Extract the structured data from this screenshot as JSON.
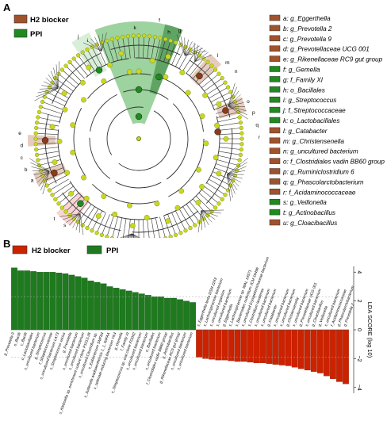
{
  "panel_a": {
    "label": "A",
    "group_legend": [
      {
        "name": "H2 blocker",
        "color": "#a0522d"
      },
      {
        "name": "PPI",
        "color": "#1f8a1f"
      }
    ],
    "taxa_legend": [
      {
        "text": "a: g_Eggerthella",
        "group": "h2"
      },
      {
        "text": "b: g_Prevotella 2",
        "group": "h2"
      },
      {
        "text": "c: g_Prevotella 9",
        "group": "h2"
      },
      {
        "text": "d: g_Prevotellaceae UCG 001",
        "group": "h2"
      },
      {
        "text": "e: g_Rikenellaceae RC9 gut group",
        "group": "h2"
      },
      {
        "text": "f: g_Gemella",
        "group": "ppi"
      },
      {
        "text": "g: f_Family XI",
        "group": "ppi"
      },
      {
        "text": "h: o_Bacillales",
        "group": "ppi"
      },
      {
        "text": "i: g_Streptococcus",
        "group": "ppi"
      },
      {
        "text": "j: f_Streptococcaceae",
        "group": "ppi"
      },
      {
        "text": "k: o_Lactobacillales",
        "group": "ppi"
      },
      {
        "text": "l: g_Catabacter",
        "group": "h2"
      },
      {
        "text": "m: g_Christensenella",
        "group": "h2"
      },
      {
        "text": "n: g_uncultured bacterium",
        "group": "h2"
      },
      {
        "text": "o: f_Clostridiales vadin BB60 group",
        "group": "h2"
      },
      {
        "text": "p: g_Ruminiclostridium 6",
        "group": "h2"
      },
      {
        "text": "q: g_Phascolarctobacterium",
        "group": "h2"
      },
      {
        "text": "r: f_Acidaminococcaceae",
        "group": "h2"
      },
      {
        "text": "s: g_Veillonella",
        "group": "ppi"
      },
      {
        "text": "t: g_Actinobacillus",
        "group": "ppi"
      },
      {
        "text": "u: g_Cloacibacillus",
        "group": "h2"
      }
    ],
    "clade_labels": [
      "k",
      "h",
      "g",
      "i",
      "j",
      "f",
      "l",
      "m",
      "n",
      "o",
      "p",
      "q",
      "r",
      "s",
      "t",
      "u",
      "a",
      "b",
      "c",
      "d",
      "e"
    ]
  },
  "panel_b": {
    "label": "B",
    "legend": [
      {
        "name": "H2 blocker",
        "color": "#cc2200"
      },
      {
        "name": "PPI",
        "color": "#1f7a1f"
      }
    ],
    "axis_label": "LDA SCORE (log 10)",
    "axis_ticks": [
      "4",
      "2",
      "0",
      "−2",
      "−4"
    ],
    "ppi_labels": [
      "g_Prevotella 9",
      "o_Bacilli",
      "c_Bacilli",
      "o_Lactobacillales",
      "s_uncultured bacterium",
      "g_Streptococcus",
      "f_Streptococcaceae",
      "s_uncultured bacterium LA73",
      "s_Streptococcus varius",
      "g_Prevotella",
      "s_uncultured bacterium",
      "s_uncultured bacterium",
      "s_Klebsiella sp. enrichment culture clone P1013-35",
      "s_uncultured Clostridium sp.",
      "s_Eubacterium SMF64",
      "s_Sutterella wadsworthensis 1_1_50FAA",
      "s_selenate-reducing bacterium YK4",
      "g_Gemella",
      "f_Family XI",
      "s_Streptococcus sp. oral clone FO042",
      "s_uncultured bacterium",
      "s_uncultured bacterium",
      "o_Bacillales",
      "s_uncultured bacterium",
      "f_Clostridiales vadin BB60 group",
      "g_Actinobacillus",
      "g_Rikenellaceae RC9 gut group",
      "s_uncultured bacterium",
      "s_uncultured bacterium"
    ],
    "h2_labels": [
      "s_Eggerthella lenta DSM 2243",
      "s_Lachnospiraceae bacterium",
      "s_uncultured organism",
      "s_uncultured bacterium",
      "g_Eggerthella",
      "s_Lachnospiraceae sp. WAL 14571",
      "s_Bacteroides rodentium JCM 16496",
      "s_uncultured Erysipelotrichaceae bacterium",
      "s_Clostridium lavalense",
      "s_uncultured bacterium",
      "s_uncultured bacterium",
      "g_Catabacter",
      "s_uncultured bacterium",
      "s_uncultured bacterium",
      "g_Christensenella",
      "s_uncultured bacterium",
      "g_Prevotellaceae UCG 001",
      "s_uncultured bacterium",
      "g_Cloacibacillus",
      "g_Veillonella",
      "s_uncultured bacterium",
      "f_Acidaminococcaceae",
      "g_Phascolarctobacterium",
      "g_Prevotella 2"
    ]
  },
  "chart_data": {
    "type": "bar",
    "xlabel": "",
    "ylabel": "LDA SCORE (log 10)",
    "ylim": [
      -4.4,
      4.4
    ],
    "legend": "top-left",
    "series": [
      {
        "name": "PPI",
        "values": [
          4.3,
          4.1,
          4.1,
          4.05,
          4.0,
          4.0,
          4.0,
          3.95,
          3.9,
          3.8,
          3.7,
          3.6,
          3.4,
          3.3,
          3.2,
          3.0,
          2.9,
          2.8,
          2.7,
          2.6,
          2.5,
          2.4,
          2.3,
          2.3,
          2.2,
          2.2,
          2.1,
          2.0,
          1.9
        ]
      },
      {
        "name": "H2 blocker",
        "values": [
          -1.9,
          -2.0,
          -2.05,
          -2.1,
          -2.1,
          -2.15,
          -2.2,
          -2.2,
          -2.25,
          -2.3,
          -2.3,
          -2.35,
          -2.4,
          -2.45,
          -2.5,
          -2.6,
          -2.7,
          -2.8,
          -2.9,
          -3.0,
          -3.2,
          -3.4,
          -3.6,
          -3.75
        ]
      }
    ]
  }
}
